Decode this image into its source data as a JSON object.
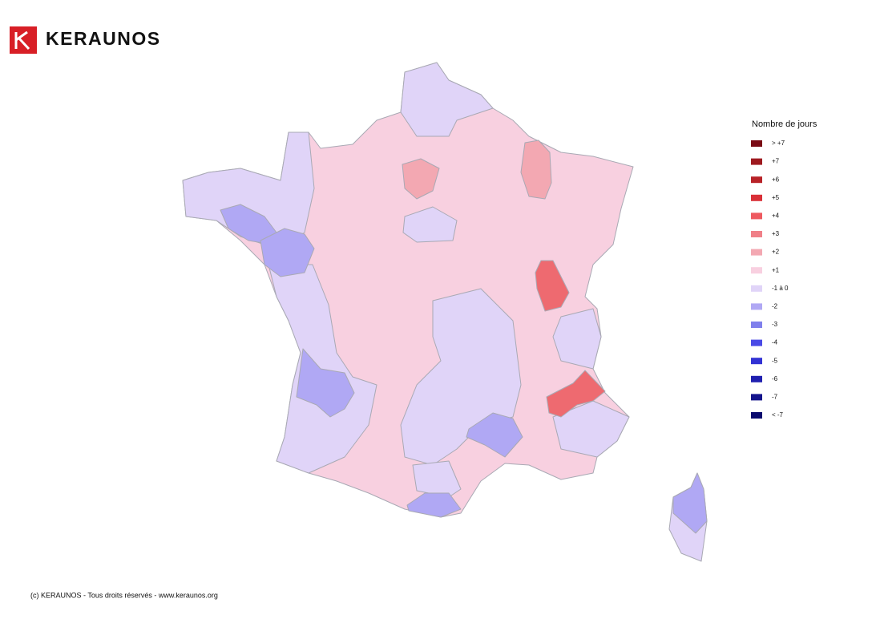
{
  "header": {
    "brand": "KERAUNOS"
  },
  "legend": {
    "title": "Nombre de jours",
    "items": [
      {
        "label": "> +7",
        "color": "#7a0a14"
      },
      {
        "label": "+7",
        "color": "#9e1a1f"
      },
      {
        "label": "+6",
        "color": "#b82228"
      },
      {
        "label": "+5",
        "color": "#d93038"
      },
      {
        "label": "+4",
        "color": "#ee5a60"
      },
      {
        "label": "+3",
        "color": "#f08088"
      },
      {
        "label": "+2",
        "color": "#f3a8b2"
      },
      {
        "label": "+1",
        "color": "#f8d0e0"
      },
      {
        "label": "-1 à 0",
        "color": "#e0d4f8"
      },
      {
        "label": "-2",
        "color": "#b0a8f4"
      },
      {
        "label": "-3",
        "color": "#8080ec"
      },
      {
        "label": "-4",
        "color": "#4a4ae6"
      },
      {
        "label": "-5",
        "color": "#3232d4"
      },
      {
        "label": "-6",
        "color": "#2020b0"
      },
      {
        "label": "-7",
        "color": "#14148c"
      },
      {
        "label": "< -7",
        "color": "#0a0a6e"
      }
    ]
  },
  "footer": {
    "text": "(c) KERAUNOS - Tous droits réservés - www.keraunos.org"
  }
}
